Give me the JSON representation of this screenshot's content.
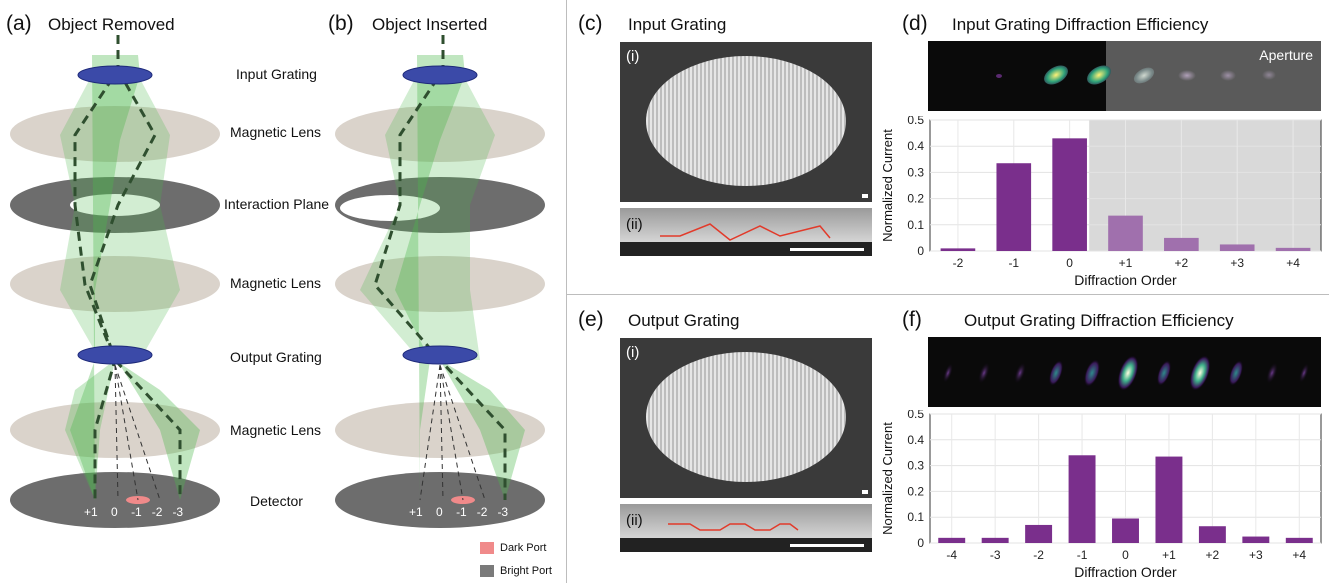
{
  "left": {
    "panel_a": {
      "letter": "(a)",
      "title": "Object Removed"
    },
    "panel_b": {
      "letter": "(b)",
      "title": "Object Inserted"
    },
    "layer_labels": [
      "Input Grating",
      "Magnetic Lens",
      "Interaction Plane",
      "Magnetic Lens",
      "Output Grating",
      "Magnetic Lens",
      "Detector"
    ],
    "detector_orders": [
      "+1",
      "0",
      "-1",
      "-2",
      "-3"
    ],
    "legend": [
      {
        "label": "Dark Port",
        "color": "#f08a8a"
      },
      {
        "label": "Bright Port",
        "color": "#7a7a7a"
      }
    ]
  },
  "panel_c": {
    "letter": "(c)",
    "title": "Input Grating",
    "sub_i": "(i)",
    "sub_ii": "(ii)"
  },
  "panel_e": {
    "letter": "(e)",
    "title": "Output Grating",
    "sub_i": "(i)",
    "sub_ii": "(ii)"
  },
  "panel_d": {
    "letter": "(d)",
    "title": "Input Grating Diffraction Efficiency",
    "aperture_label": "Aperture"
  },
  "panel_f": {
    "letter": "(f)",
    "title": "Output Grating Diffraction Efficiency"
  },
  "chart_data": [
    {
      "type": "bar",
      "categories": [
        "-2",
        "-1",
        "0",
        "+1",
        "+2",
        "+3",
        "+4"
      ],
      "values": [
        0.01,
        0.335,
        0.43,
        0.135,
        0.05,
        0.025,
        0.012
      ],
      "xlabel": "Diffraction Order",
      "ylabel": "Normalized Current",
      "ylim": [
        0,
        0.5
      ],
      "yticks": [
        "0",
        "0.1",
        "0.2",
        "0.3",
        "0.4",
        "0.5"
      ],
      "grid": true,
      "bar_color": "#7a2f8c",
      "faded_bar_color": "#a070ad",
      "shaded_region_from": "+1"
    },
    {
      "type": "bar",
      "categories": [
        "-4",
        "-3",
        "-2",
        "-1",
        "0",
        "+1",
        "+2",
        "+3",
        "+4"
      ],
      "values": [
        0.02,
        0.02,
        0.07,
        0.34,
        0.095,
        0.335,
        0.065,
        0.025,
        0.02
      ],
      "xlabel": "Diffraction Order",
      "ylabel": "Normalized Current",
      "ylim": [
        0,
        0.5
      ],
      "yticks": [
        "0",
        "0.1",
        "0.2",
        "0.3",
        "0.4",
        "0.5"
      ],
      "grid": true,
      "bar_color": "#7a2f8c"
    }
  ]
}
